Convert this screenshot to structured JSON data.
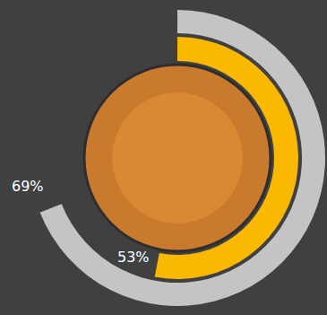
{
  "chart_data": {
    "type": "radial_progress",
    "values": [
      69,
      53
    ],
    "value_labels": [
      "69%",
      "53%"
    ],
    "colors": [
      "#c4c4c4",
      "#fbb800"
    ],
    "ylim": [
      0,
      100
    ],
    "data_labels": true
  }
}
